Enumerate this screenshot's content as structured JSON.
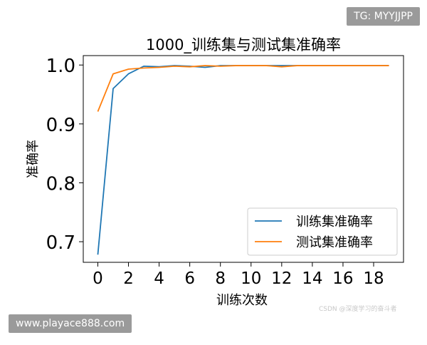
{
  "watermarks": {
    "tg": "TG: MYYJJPP",
    "url": "www.playace888.com",
    "csdn": "CSDN @深度学习的奋斗者"
  },
  "colors": {
    "train": "#1f77b4",
    "test": "#ff7f0e"
  },
  "chart_data": {
    "type": "line",
    "title": "1000_训练集与测试集准确率",
    "xlabel": "训练次数",
    "ylabel": "准确率",
    "xlim": [
      -0.95,
      19.95
    ],
    "ylim": [
      0.665,
      1.016
    ],
    "xticks": [
      0,
      2,
      4,
      6,
      8,
      10,
      12,
      14,
      16,
      18
    ],
    "yticks": [
      0.7,
      0.8,
      0.9,
      1.0
    ],
    "ytick_labels": [
      "0.7",
      "0.8",
      "0.9",
      "1.0"
    ],
    "legend_position": "lower-right",
    "x": [
      0,
      1,
      2,
      3,
      4,
      5,
      6,
      7,
      8,
      9,
      10,
      11,
      12,
      13,
      14,
      15,
      16,
      17,
      18,
      19
    ],
    "series": [
      {
        "name": "训练集准确率",
        "color": "#1f77b4",
        "values": [
          0.678,
          0.96,
          0.985,
          0.998,
          0.997,
          0.999,
          0.998,
          0.996,
          0.999,
          0.999,
          0.999,
          0.999,
          0.999,
          0.999,
          0.999,
          0.999,
          0.999,
          0.999,
          0.999,
          0.999
        ]
      },
      {
        "name": "测试集准确率",
        "color": "#ff7f0e",
        "values": [
          0.921,
          0.985,
          0.993,
          0.995,
          0.996,
          0.998,
          0.997,
          0.999,
          0.998,
          0.999,
          0.999,
          0.999,
          0.997,
          0.999,
          0.999,
          0.999,
          0.999,
          0.999,
          0.999,
          0.999
        ]
      }
    ]
  }
}
